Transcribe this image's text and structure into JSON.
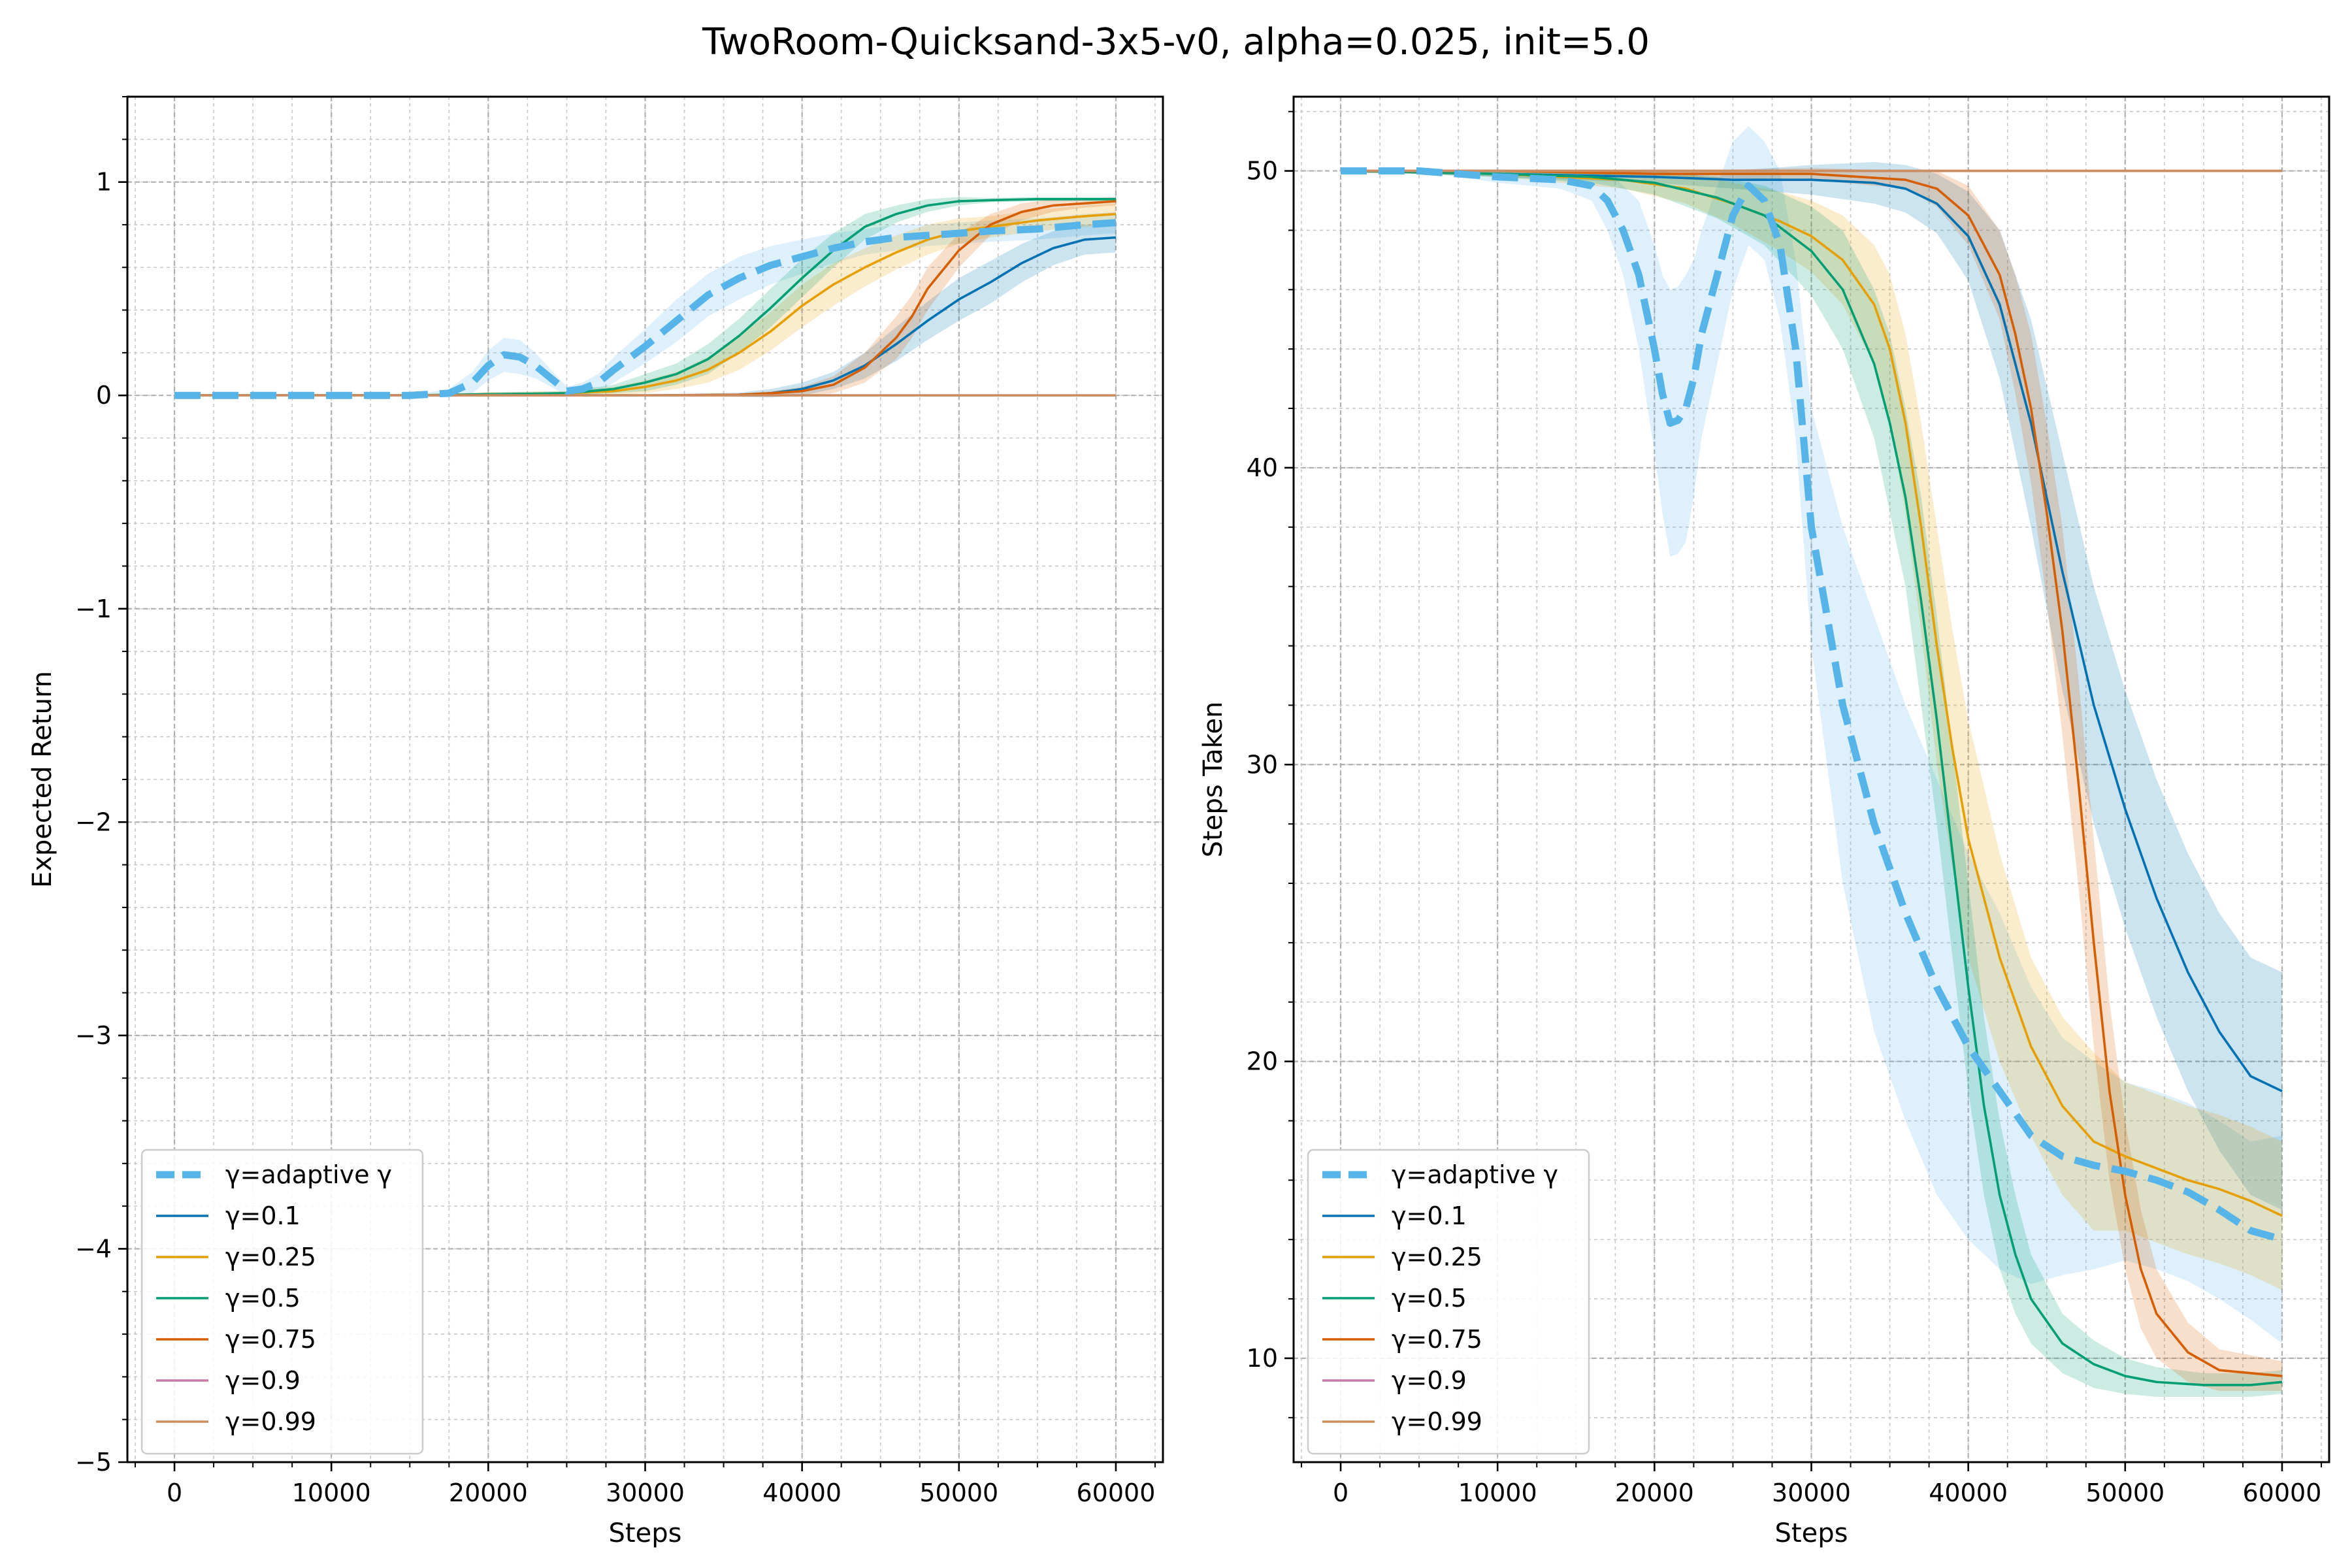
{
  "figure": {
    "title": "TwoRoom-Quicksand-3x5-v0, alpha=0.025, init=5.0"
  },
  "series_style": [
    {
      "name": "γ=adaptive γ",
      "color": "#56B4E9",
      "dashed": true
    },
    {
      "name": "γ=0.1",
      "color": "#0072B2",
      "dashed": false
    },
    {
      "name": "γ=0.25",
      "color": "#E69F00",
      "dashed": false
    },
    {
      "name": "γ=0.5",
      "color": "#009E73",
      "dashed": false
    },
    {
      "name": "γ=0.75",
      "color": "#D55E00",
      "dashed": false
    },
    {
      "name": "γ=0.9",
      "color": "#CC79A7",
      "dashed": false
    },
    {
      "name": "γ=0.99",
      "color": "#CA8E60",
      "dashed": false
    }
  ],
  "chart_data": [
    {
      "type": "line",
      "title": "",
      "xlabel": "Steps",
      "ylabel": "Expected Return",
      "xlim": [
        -3000,
        63000
      ],
      "ylim": [
        -5,
        1.4
      ],
      "xticks": [
        0,
        10000,
        20000,
        30000,
        40000,
        50000,
        60000
      ],
      "yticks": [
        -5,
        -4,
        -3,
        -2,
        -1,
        0,
        1
      ],
      "ytick_labels": [
        "−5",
        "−4",
        "−3",
        "−2",
        "−1",
        "0",
        "1"
      ],
      "grid": true,
      "legend": "lower-left",
      "series": [
        {
          "name": "γ=adaptive γ",
          "x": [
            0,
            5000,
            10000,
            15000,
            17500,
            19000,
            20000,
            21000,
            22000,
            23000,
            24000,
            25000,
            26000,
            27000,
            28000,
            30000,
            32000,
            34000,
            36000,
            38000,
            40000,
            42000,
            44000,
            46000,
            48000,
            50000,
            52000,
            55000,
            58000,
            60000
          ],
          "y": [
            0,
            0,
            0,
            0,
            0.01,
            0.06,
            0.14,
            0.19,
            0.18,
            0.14,
            0.08,
            0.02,
            0.03,
            0.06,
            0.12,
            0.23,
            0.35,
            0.47,
            0.55,
            0.61,
            0.65,
            0.69,
            0.72,
            0.74,
            0.75,
            0.76,
            0.77,
            0.78,
            0.8,
            0.81
          ],
          "band": [
            0,
            0,
            0,
            0,
            0.02,
            0.05,
            0.07,
            0.08,
            0.08,
            0.06,
            0.04,
            0.02,
            0.03,
            0.04,
            0.06,
            0.08,
            0.1,
            0.1,
            0.1,
            0.09,
            0.08,
            0.07,
            0.06,
            0.06,
            0.05,
            0.05,
            0.05,
            0.05,
            0.05,
            0.05
          ]
        },
        {
          "name": "γ=0.1",
          "x": [
            0,
            10000,
            20000,
            30000,
            36000,
            38000,
            40000,
            42000,
            44000,
            46000,
            48000,
            50000,
            52000,
            54000,
            56000,
            58000,
            60000
          ],
          "y": [
            0,
            0,
            0,
            0,
            0.003,
            0.01,
            0.03,
            0.07,
            0.14,
            0.24,
            0.35,
            0.45,
            0.53,
            0.62,
            0.69,
            0.73,
            0.74
          ],
          "band": [
            0,
            0,
            0,
            0,
            0.01,
            0.02,
            0.03,
            0.04,
            0.06,
            0.08,
            0.09,
            0.1,
            0.1,
            0.09,
            0.08,
            0.07,
            0.07
          ]
        },
        {
          "name": "γ=0.25",
          "x": [
            0,
            10000,
            15000,
            20000,
            25000,
            28000,
            30000,
            32000,
            34000,
            36000,
            38000,
            40000,
            42000,
            44000,
            46000,
            48000,
            50000,
            52000,
            55000,
            58000,
            60000
          ],
          "y": [
            0,
            0,
            0,
            0.005,
            0.01,
            0.02,
            0.04,
            0.07,
            0.12,
            0.2,
            0.3,
            0.42,
            0.52,
            0.6,
            0.67,
            0.73,
            0.77,
            0.79,
            0.82,
            0.84,
            0.85
          ],
          "band": [
            0,
            0,
            0,
            0.01,
            0.01,
            0.02,
            0.03,
            0.04,
            0.06,
            0.08,
            0.09,
            0.1,
            0.1,
            0.09,
            0.08,
            0.07,
            0.06,
            0.05,
            0.05,
            0.05,
            0.05
          ]
        },
        {
          "name": "γ=0.5",
          "x": [
            0,
            10000,
            15000,
            20000,
            25000,
            28000,
            30000,
            32000,
            34000,
            36000,
            38000,
            40000,
            42000,
            44000,
            46000,
            48000,
            50000,
            52000,
            55000,
            60000
          ],
          "y": [
            0,
            0,
            0,
            0.005,
            0.01,
            0.03,
            0.06,
            0.1,
            0.17,
            0.28,
            0.41,
            0.55,
            0.68,
            0.79,
            0.85,
            0.89,
            0.91,
            0.915,
            0.92,
            0.92
          ],
          "band": [
            0,
            0,
            0,
            0.01,
            0.01,
            0.02,
            0.04,
            0.05,
            0.07,
            0.08,
            0.09,
            0.09,
            0.08,
            0.06,
            0.04,
            0.03,
            0.02,
            0.01,
            0.01,
            0.01
          ]
        },
        {
          "name": "γ=0.75",
          "x": [
            0,
            10000,
            20000,
            30000,
            36000,
            38000,
            40000,
            42000,
            44000,
            46000,
            47000,
            48000,
            50000,
            52000,
            54000,
            56000,
            58000,
            60000
          ],
          "y": [
            0,
            0,
            0,
            0,
            0.003,
            0.01,
            0.02,
            0.05,
            0.13,
            0.27,
            0.37,
            0.5,
            0.68,
            0.8,
            0.86,
            0.89,
            0.9,
            0.91
          ],
          "band": [
            0,
            0,
            0,
            0,
            0.005,
            0.01,
            0.02,
            0.04,
            0.07,
            0.1,
            0.1,
            0.1,
            0.08,
            0.05,
            0.04,
            0.03,
            0.02,
            0.02
          ]
        },
        {
          "name": "γ=0.9",
          "x": [
            0,
            60000
          ],
          "y": [
            0,
            0
          ],
          "band": [
            0,
            0
          ]
        },
        {
          "name": "γ=0.99",
          "x": [
            0,
            60000
          ],
          "y": [
            0,
            0
          ],
          "band": [
            0,
            0
          ]
        }
      ]
    },
    {
      "type": "line",
      "title": "",
      "xlabel": "Steps",
      "ylabel": "Steps Taken",
      "xlim": [
        -3000,
        63000
      ],
      "ylim": [
        6.5,
        52.5
      ],
      "xticks": [
        0,
        10000,
        20000,
        30000,
        40000,
        50000,
        60000
      ],
      "yticks": [
        10,
        20,
        30,
        40,
        50
      ],
      "ytick_labels": [
        "10",
        "20",
        "30",
        "40",
        "50"
      ],
      "grid": true,
      "legend": "lower-left",
      "series": [
        {
          "name": "γ=adaptive γ",
          "x": [
            0,
            5000,
            10000,
            14000,
            16000,
            17000,
            18000,
            19000,
            20000,
            20500,
            21000,
            21500,
            22000,
            22500,
            23000,
            24000,
            25000,
            26000,
            27000,
            28000,
            29000,
            30000,
            31000,
            32000,
            34000,
            36000,
            38000,
            40000,
            42000,
            44000,
            46000,
            48000,
            50000,
            52000,
            54000,
            56000,
            58000,
            60000
          ],
          "y": [
            50,
            50,
            49.8,
            49.7,
            49.5,
            49,
            48,
            46.5,
            44,
            42.5,
            41.5,
            41.6,
            42,
            43,
            44.5,
            46.5,
            48.5,
            49.5,
            49,
            47.5,
            44,
            38,
            35,
            32,
            28,
            25,
            22.5,
            20.5,
            19,
            17.5,
            16.8,
            16.5,
            16.3,
            16,
            15.6,
            15,
            14.3,
            14
          ],
          "band": [
            0,
            0,
            0.2,
            0.3,
            0.5,
            1,
            1.5,
            2.5,
            3.5,
            4,
            4.5,
            4.5,
            4.5,
            4,
            3.5,
            3,
            2.5,
            2,
            2,
            2.5,
            3,
            4,
            5,
            6,
            7,
            7,
            7,
            6.5,
            6,
            5,
            4,
            3.5,
            3,
            3,
            3,
            3,
            3,
            3.5
          ]
        },
        {
          "name": "γ=0.1",
          "x": [
            0,
            10000,
            20000,
            25000,
            30000,
            34000,
            36000,
            38000,
            40000,
            42000,
            44000,
            46000,
            48000,
            50000,
            52000,
            54000,
            56000,
            58000,
            60000
          ],
          "y": [
            50,
            49.9,
            49.8,
            49.7,
            49.7,
            49.6,
            49.4,
            48.9,
            47.8,
            45.5,
            41.5,
            36.5,
            32,
            28.5,
            25.5,
            23,
            21,
            19.5,
            19
          ],
          "band": [
            0,
            0.1,
            0.2,
            0.3,
            0.5,
            0.7,
            0.8,
            1,
            1.5,
            2.5,
            3.5,
            4,
            4,
            4,
            4,
            4,
            4,
            4,
            4
          ]
        },
        {
          "name": "γ=0.25",
          "x": [
            0,
            10000,
            18000,
            22000,
            25000,
            28000,
            30000,
            32000,
            34000,
            35000,
            36000,
            37000,
            38000,
            39000,
            40000,
            42000,
            44000,
            46000,
            48000,
            50000,
            52000,
            54000,
            56000,
            58000,
            60000
          ],
          "y": [
            50,
            49.9,
            49.7,
            49.4,
            48.9,
            48.3,
            47.8,
            47,
            45.5,
            44,
            41.5,
            38,
            34,
            30.5,
            27.5,
            23.5,
            20.5,
            18.5,
            17.3,
            16.8,
            16.4,
            16,
            15.7,
            15.3,
            14.8
          ],
          "band": [
            0,
            0.1,
            0.3,
            0.5,
            0.7,
            1,
            1.2,
            1.5,
            2,
            2.5,
            3,
            3.5,
            4,
            4,
            4,
            3.5,
            3,
            3,
            3,
            2.5,
            2.5,
            2.5,
            2.5,
            2.5,
            2.5
          ]
        },
        {
          "name": "γ=0.5",
          "x": [
            0,
            10000,
            16000,
            20000,
            24000,
            27000,
            30000,
            32000,
            34000,
            35000,
            36000,
            37000,
            38000,
            39000,
            40000,
            41000,
            42000,
            43000,
            44000,
            46000,
            48000,
            50000,
            52000,
            55000,
            58000,
            60000
          ],
          "y": [
            50,
            49.9,
            49.8,
            49.6,
            49.1,
            48.5,
            47.3,
            46,
            43.5,
            41.5,
            39,
            35.5,
            31.5,
            27,
            22.5,
            18.5,
            15.5,
            13.5,
            12,
            10.5,
            9.8,
            9.4,
            9.2,
            9.1,
            9.1,
            9.2
          ],
          "band": [
            0,
            0.1,
            0.2,
            0.4,
            0.7,
            1,
            1.5,
            2,
            2.5,
            3,
            3,
            3.5,
            3.5,
            3.5,
            3.5,
            3,
            2.5,
            2,
            1.5,
            1,
            0.8,
            0.6,
            0.5,
            0.4,
            0.4,
            0.4
          ]
        },
        {
          "name": "γ=0.75",
          "x": [
            0,
            10000,
            20000,
            30000,
            36000,
            38000,
            40000,
            42000,
            43000,
            44000,
            45000,
            46000,
            47000,
            48000,
            49000,
            50000,
            51000,
            52000,
            54000,
            56000,
            58000,
            60000
          ],
          "y": [
            50,
            50,
            49.9,
            49.9,
            49.7,
            49.4,
            48.5,
            46.5,
            44.5,
            42,
            38.5,
            34.5,
            29.5,
            24,
            19,
            15.5,
            13,
            11.5,
            10.2,
            9.6,
            9.5,
            9.4
          ],
          "band": [
            0,
            0,
            0.1,
            0.2,
            0.3,
            0.6,
            1,
            1.5,
            2,
            2.5,
            3,
            3.5,
            3.5,
            3.5,
            3,
            2.5,
            2,
            1.5,
            1,
            0.7,
            0.6,
            0.5
          ]
        },
        {
          "name": "γ=0.9",
          "x": [
            0,
            60000
          ],
          "y": [
            50,
            50
          ],
          "band": [
            0,
            0
          ]
        },
        {
          "name": "γ=0.99",
          "x": [
            0,
            60000
          ],
          "y": [
            50,
            50
          ],
          "band": [
            0,
            0
          ]
        }
      ]
    }
  ]
}
